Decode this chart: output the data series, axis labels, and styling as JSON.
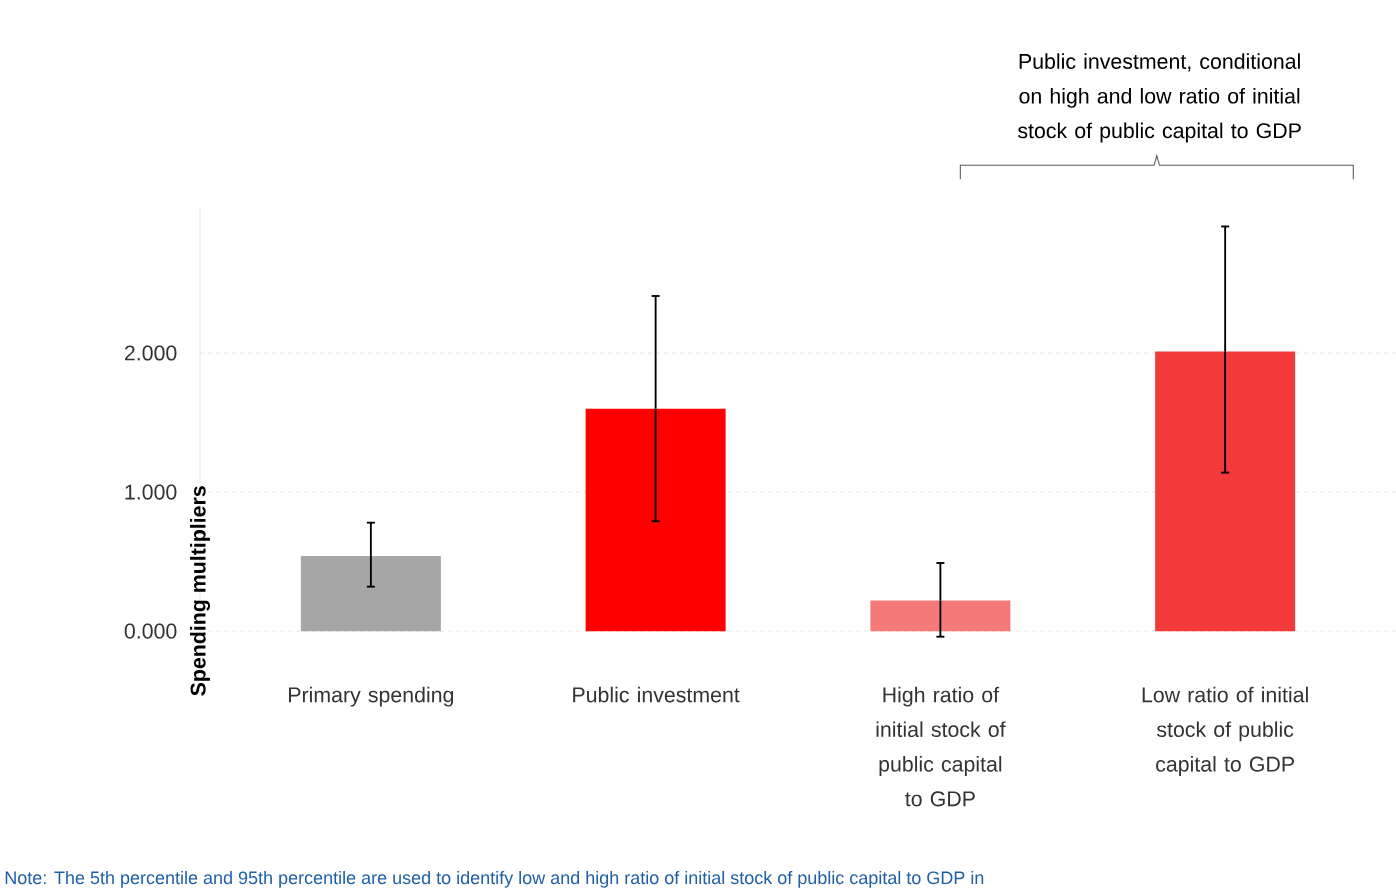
{
  "chart_data": {
    "type": "bar",
    "ylabel": "Spending multipliers",
    "categories": [
      "Primary spending",
      "Public investment",
      "High ratio of initial stock of public capital to GDP",
      "Low ratio of initial stock of public capital to GDP"
    ],
    "values": [
      0.54,
      1.6,
      0.22,
      2.01
    ],
    "errors": [
      [
        0.32,
        0.78
      ],
      [
        0.79,
        2.41
      ],
      [
        -0.04,
        0.49
      ],
      [
        1.14,
        2.91
      ]
    ],
    "colors": [
      "#a6a6a6",
      "#ff0000",
      "#f47a7a",
      "#f23a3a"
    ],
    "ylim": [
      -0.15,
      3.05
    ],
    "yticks": [
      {
        "value": 0,
        "label": "0.000"
      },
      {
        "value": 1,
        "label": "1.000"
      },
      {
        "value": 2,
        "label": "2.000"
      }
    ],
    "grid": "y",
    "annotations": [
      "Public investment, conditional on high and low ratio of initial stock of public capital to GDP",
      "Note: The 5th percentile and 95th percentile are used to identify low and high ratio of initial stock of public capital to GDP in"
    ]
  }
}
